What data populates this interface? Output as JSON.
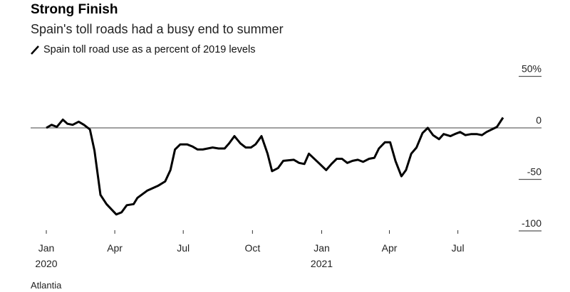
{
  "header": {
    "title": "Strong Finish",
    "subtitle": "Spain's toll roads had a busy end to summer"
  },
  "source": "Atlantia",
  "chart_data": {
    "type": "line",
    "title": "Strong Finish",
    "subtitle": "Spain's toll roads had a busy end to summer",
    "xlabel": "",
    "ylabel": "",
    "ylim": [
      -100,
      50
    ],
    "xlim": [
      "2020-01-01",
      "2021-09-05"
    ],
    "grid": false,
    "legend": "top-left",
    "line_color": "#000000",
    "zero_line_color": "#808080",
    "y_ticks": [
      {
        "value": 50,
        "label": "50%"
      },
      {
        "value": 0,
        "label": "0"
      },
      {
        "value": -50,
        "label": "-50"
      },
      {
        "value": -100,
        "label": "-100"
      }
    ],
    "x_ticks": [
      {
        "date": "2020-01-01",
        "label": "Jan",
        "sublabel": "2020"
      },
      {
        "date": "2020-04-01",
        "label": "Apr",
        "sublabel": ""
      },
      {
        "date": "2020-07-01",
        "label": "Jul",
        "sublabel": ""
      },
      {
        "date": "2020-10-01",
        "label": "Oct",
        "sublabel": ""
      },
      {
        "date": "2021-01-01",
        "label": "Jan",
        "sublabel": "2021"
      },
      {
        "date": "2021-04-01",
        "label": "Apr",
        "sublabel": ""
      },
      {
        "date": "2021-07-01",
        "label": "Jul",
        "sublabel": ""
      }
    ],
    "series": [
      {
        "name": "Spain toll road use as a percent of 2019 levels",
        "points": [
          [
            "2020-01-01",
            0
          ],
          [
            "2020-01-08",
            3
          ],
          [
            "2020-01-15",
            1
          ],
          [
            "2020-01-23",
            8
          ],
          [
            "2020-01-29",
            4
          ],
          [
            "2020-02-05",
            3
          ],
          [
            "2020-02-13",
            6
          ],
          [
            "2020-02-20",
            3
          ],
          [
            "2020-02-28",
            -1.5
          ],
          [
            "2020-03-05",
            -22
          ],
          [
            "2020-03-13",
            -65
          ],
          [
            "2020-03-21",
            -74
          ],
          [
            "2020-04-03",
            -84
          ],
          [
            "2020-04-10",
            -82
          ],
          [
            "2020-04-17",
            -75
          ],
          [
            "2020-04-26",
            -74
          ],
          [
            "2020-05-01",
            -68
          ],
          [
            "2020-05-14",
            -61
          ],
          [
            "2020-05-29",
            -56
          ],
          [
            "2020-06-07",
            -52
          ],
          [
            "2020-06-14",
            -41
          ],
          [
            "2020-06-20",
            -21
          ],
          [
            "2020-06-27",
            -16
          ],
          [
            "2020-07-06",
            -16
          ],
          [
            "2020-07-13",
            -18
          ],
          [
            "2020-07-20",
            -21
          ],
          [
            "2020-07-27",
            -21
          ],
          [
            "2020-08-09",
            -19
          ],
          [
            "2020-08-17",
            -20
          ],
          [
            "2020-08-25",
            -20
          ],
          [
            "2020-08-31",
            -15
          ],
          [
            "2020-09-07",
            -8
          ],
          [
            "2020-09-15",
            -15
          ],
          [
            "2020-09-22",
            -19
          ],
          [
            "2020-09-29",
            -19
          ],
          [
            "2020-10-05",
            -16
          ],
          [
            "2020-10-13",
            -8
          ],
          [
            "2020-10-21",
            -25
          ],
          [
            "2020-10-27",
            -42
          ],
          [
            "2020-11-04",
            -39
          ],
          [
            "2020-11-11",
            -32
          ],
          [
            "2020-11-25",
            -31
          ],
          [
            "2020-12-02",
            -34
          ],
          [
            "2020-12-09",
            -35
          ],
          [
            "2020-12-15",
            -25
          ],
          [
            "2020-12-28",
            -34
          ],
          [
            "2021-01-07",
            -41
          ],
          [
            "2021-01-14",
            -35
          ],
          [
            "2021-01-21",
            -30
          ],
          [
            "2021-01-28",
            -30
          ],
          [
            "2021-02-04",
            -34
          ],
          [
            "2021-02-11",
            -32
          ],
          [
            "2021-02-18",
            -31
          ],
          [
            "2021-02-25",
            -33
          ],
          [
            "2021-03-05",
            -30
          ],
          [
            "2021-03-12",
            -29
          ],
          [
            "2021-03-18",
            -20
          ],
          [
            "2021-03-26",
            -14
          ],
          [
            "2021-04-02",
            -14
          ],
          [
            "2021-04-09",
            -32
          ],
          [
            "2021-04-17",
            -47
          ],
          [
            "2021-04-23",
            -41
          ],
          [
            "2021-04-30",
            -25
          ],
          [
            "2021-05-07",
            -19
          ],
          [
            "2021-05-15",
            -5
          ],
          [
            "2021-05-22",
            0
          ],
          [
            "2021-05-29",
            -7
          ],
          [
            "2021-06-06",
            -11
          ],
          [
            "2021-06-12",
            -6
          ],
          [
            "2021-06-21",
            -8
          ],
          [
            "2021-06-27",
            -6
          ],
          [
            "2021-07-04",
            -4
          ],
          [
            "2021-07-11",
            -7
          ],
          [
            "2021-07-19",
            -6
          ],
          [
            "2021-07-26",
            -6
          ],
          [
            "2021-08-02",
            -7
          ],
          [
            "2021-08-08",
            -4
          ],
          [
            "2021-08-22",
            1
          ],
          [
            "2021-08-30",
            10
          ]
        ]
      }
    ]
  }
}
